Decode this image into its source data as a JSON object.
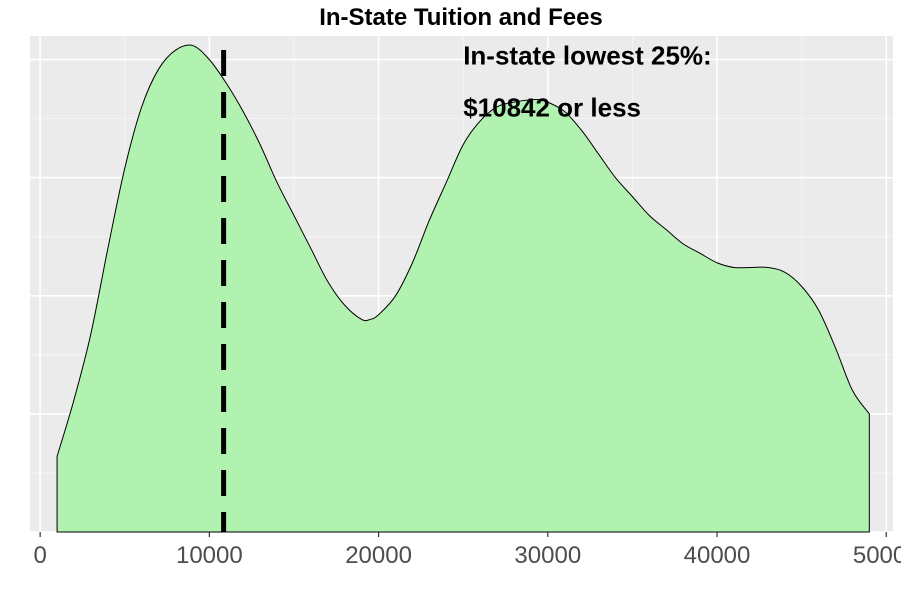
{
  "chart_data": {
    "type": "area",
    "title": "In-State Tuition and Fees",
    "xlabel": "",
    "ylabel": "",
    "xlim": [
      -600,
      50400
    ],
    "ylim": [
      0,
      1.05
    ],
    "x_ticks": [
      0,
      10000,
      20000,
      30000,
      40000,
      50000
    ],
    "x_tick_labels": [
      "0",
      "10000",
      "20000",
      "30000",
      "40000",
      "50000"
    ],
    "grid": true,
    "fill_color": "#b2f2b0",
    "line_color": "#000000",
    "background_color": "#ebebeb",
    "series": [
      {
        "x": [
          1000,
          2000,
          3000,
          4000,
          5000,
          6000,
          7000,
          8000,
          9000,
          10000,
          11000,
          12000,
          13000,
          14000,
          15000,
          16000,
          17000,
          18000,
          19000,
          19500,
          20000,
          21000,
          22000,
          23000,
          24000,
          25000,
          26000,
          27000,
          28000,
          29000,
          29500,
          30000,
          31000,
          32000,
          33000,
          34000,
          35000,
          36000,
          37000,
          38000,
          39000,
          40000,
          41000,
          42000,
          43000,
          44000,
          45000,
          46000,
          47000,
          48000,
          49000
        ],
        "y": [
          0.16,
          0.28,
          0.42,
          0.6,
          0.77,
          0.9,
          0.98,
          1.02,
          1.03,
          1.0,
          0.95,
          0.89,
          0.82,
          0.74,
          0.67,
          0.6,
          0.53,
          0.48,
          0.45,
          0.45,
          0.46,
          0.5,
          0.57,
          0.66,
          0.74,
          0.82,
          0.87,
          0.9,
          0.91,
          0.915,
          0.915,
          0.91,
          0.89,
          0.85,
          0.8,
          0.75,
          0.71,
          0.67,
          0.64,
          0.61,
          0.59,
          0.57,
          0.56,
          0.56,
          0.56,
          0.55,
          0.52,
          0.47,
          0.39,
          0.3,
          0.25
        ]
      }
    ],
    "reference_line": {
      "x": 10842,
      "style": "dashed",
      "color": "#000000"
    },
    "annotation": {
      "lines": [
        "In-state lowest 25%:",
        "$10842 or less"
      ],
      "x": 25000,
      "y": [
        0.99,
        0.88
      ]
    }
  }
}
